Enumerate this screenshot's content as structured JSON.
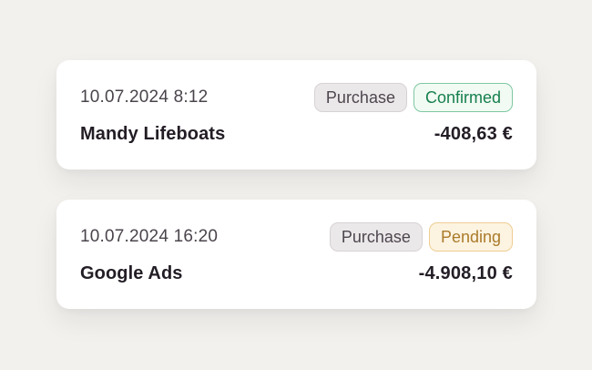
{
  "transactions": [
    {
      "datetime": "10.07.2024 8:12",
      "name": "Mandy Lifeboats",
      "amount": "-408,63 €",
      "type_badge": "Purchase",
      "status_badge": "Confirmed",
      "status": "confirmed"
    },
    {
      "datetime": "10.07.2024 16:20",
      "name": "Google Ads",
      "amount": "-4.908,10 €",
      "type_badge": "Purchase",
      "status_badge": "Pending",
      "status": "pending"
    }
  ],
  "colors": {
    "page_background": "#f3f1ee",
    "card_background": "#ffffff",
    "datetime_text": "#4a444b",
    "primary_text": "#231d25",
    "type_badge": {
      "bg": "#ebe8ea",
      "border": "#d7d2d6",
      "text": "#4d474e"
    },
    "confirmed_badge": {
      "bg": "#f2faf4",
      "border": "#7ec8a1",
      "text": "#16804d"
    },
    "pending_badge": {
      "bg": "#fdf3e1",
      "border": "#eecd92",
      "text": "#aa7b2b"
    }
  }
}
